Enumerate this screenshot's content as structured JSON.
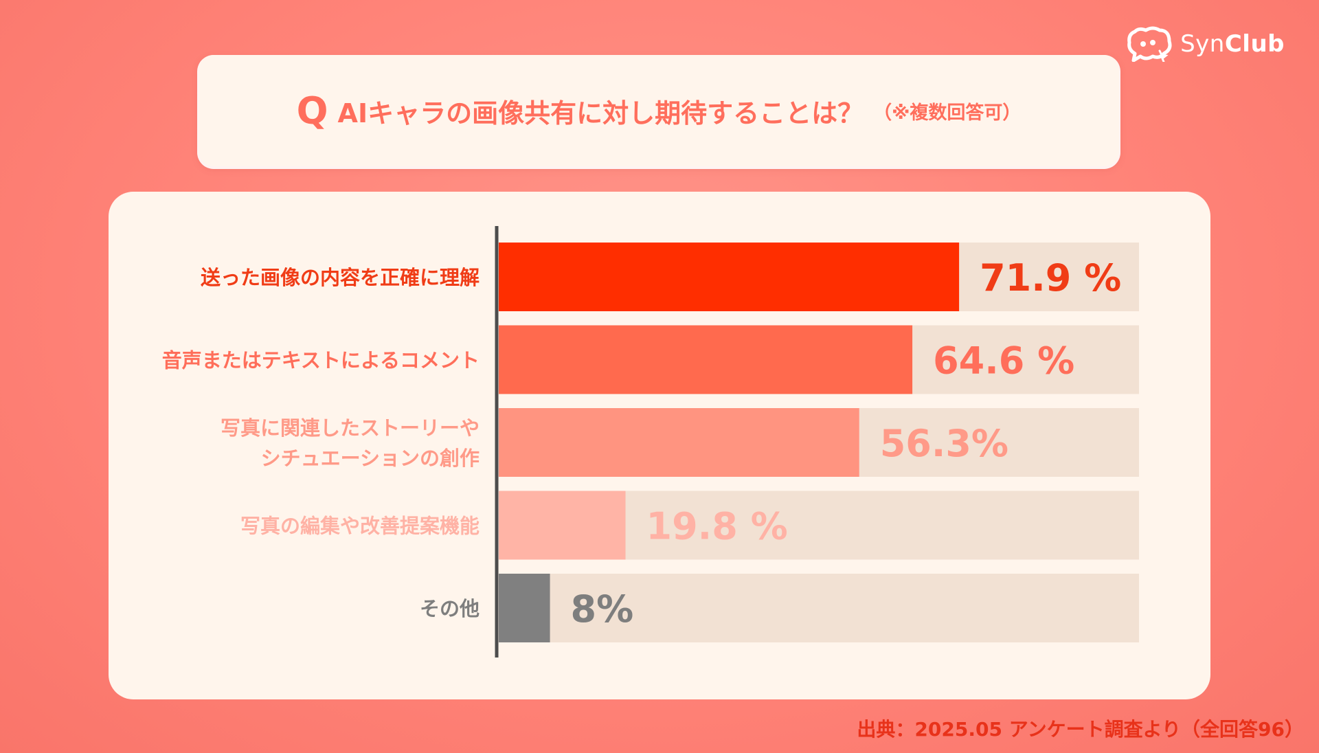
{
  "brand": {
    "logo_text_light": "Syn",
    "logo_text_bold": "Club",
    "icon": "chat-bubble-face-icon"
  },
  "question": {
    "prefix": "Q",
    "text": "AIキャラの画像共有に対し期待することは？",
    "note": "（※複数回答可）"
  },
  "chart_data": {
    "type": "bar",
    "orientation": "horizontal",
    "categories": [
      [
        "送った画像の内容を正確に理解"
      ],
      [
        "音声またはテキストによるコメント"
      ],
      [
        "写真に関連したストーリーや",
        "シチュエーションの創作"
      ],
      [
        "写真の編集や改善提案機能"
      ],
      [
        "その他"
      ]
    ],
    "values": [
      71.9,
      64.6,
      56.3,
      19.8,
      8
    ],
    "value_labels": [
      "71.9 %",
      "64.6 %",
      "56.3%",
      "19.8 %",
      "8%"
    ],
    "xlim": [
      0,
      100
    ],
    "bar_colors": [
      "#ff2e00",
      "#ff6a4e",
      "#ff9480",
      "#ffb4a6",
      "#808080"
    ],
    "label_colors": [
      "#f03c16",
      "#ff6e5a",
      "#ff9a88",
      "#ffb2a5",
      "#7e7e7e"
    ],
    "track_color": "#f2e1d3",
    "axis_color": "#4d4d4d",
    "grid": false,
    "legend": "none"
  },
  "source": "出典：2025.05 アンケート調査より（全回答96）"
}
